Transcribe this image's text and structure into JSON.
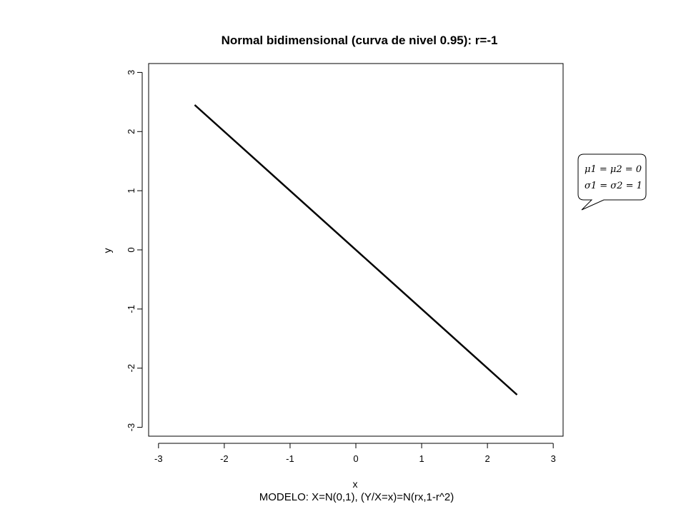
{
  "chart_data": {
    "type": "line",
    "title": "Normal bidimensional (curva de nivel 0.95): r=-1",
    "xlabel": "x",
    "ylabel": "y",
    "xlim": [
      -3.15,
      3.15
    ],
    "ylim": [
      -3.15,
      3.15
    ],
    "xticks": [
      "-3",
      "-2",
      "-1",
      "0",
      "1",
      "2",
      "3"
    ],
    "yticks": [
      "-3",
      "-2",
      "-1",
      "0",
      "1",
      "2",
      "3"
    ],
    "grid": false,
    "legend": "none",
    "series": [
      {
        "x": [
          -2.45,
          2.45
        ],
        "y": [
          2.45,
          -2.45
        ],
        "color": "#000000"
      }
    ],
    "caption": "MODELO: X=N(0,1), (Y/X=x)=N(rx,1-r^2)",
    "annotation": {
      "line1": "μ1 = μ2 = 0",
      "line2": "σ1 = σ2 = 1"
    }
  }
}
